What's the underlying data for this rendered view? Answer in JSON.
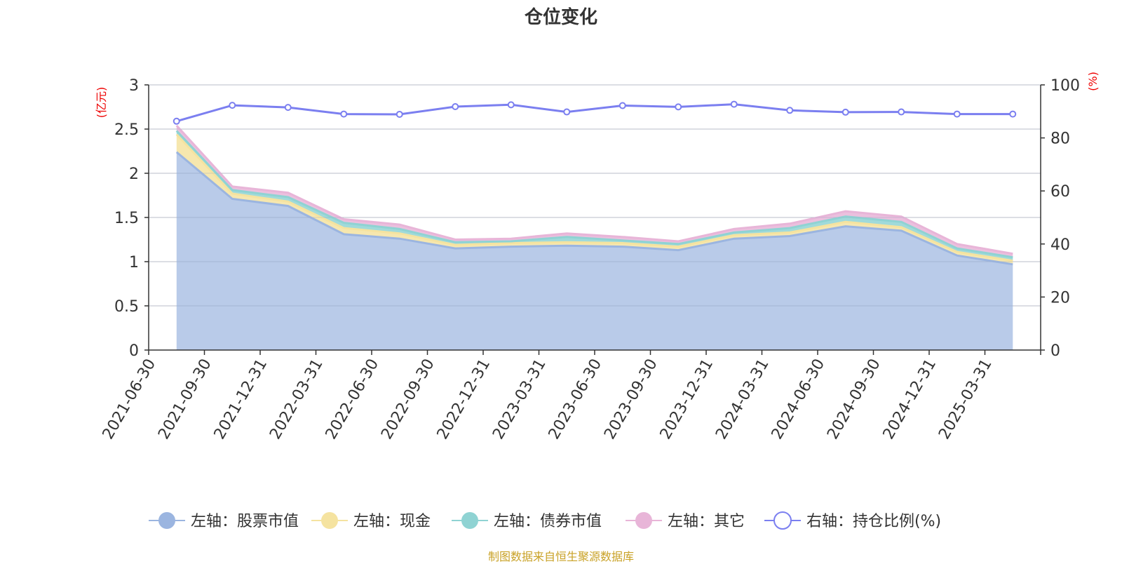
{
  "chart_data": {
    "type": "area",
    "title": "仓位变化",
    "left_axis_unit": "(亿元)",
    "right_axis_unit": "(%)",
    "left_ylim": [
      0,
      3
    ],
    "left_ticks": [
      "0",
      "0.5",
      "1",
      "1.5",
      "2",
      "2.5",
      "3"
    ],
    "right_ylim": [
      0,
      100
    ],
    "right_ticks": [
      "0",
      "20",
      "40",
      "60",
      "80",
      "100"
    ],
    "categories": [
      "2021-06-30",
      "2021-09-30",
      "2021-12-31",
      "2022-03-31",
      "2022-06-30",
      "2022-09-30",
      "2022-12-31",
      "2023-03-31",
      "2023-06-30",
      "2023-09-30",
      "2023-12-31",
      "2024-03-31",
      "2024-06-30",
      "2024-09-30",
      "2024-12-31",
      "2025-03-31"
    ],
    "series": [
      {
        "name": "左轴：股票市值",
        "axis": "left",
        "stacked": true,
        "color": "#9bb5e0",
        "values": [
          2.24,
          1.71,
          1.63,
          1.31,
          1.26,
          1.15,
          1.17,
          1.18,
          1.17,
          1.13,
          1.26,
          1.29,
          1.4,
          1.35,
          1.07,
          0.97
        ]
      },
      {
        "name": "左轴：现金",
        "axis": "left",
        "stacked": true,
        "color": "#f5e3a0",
        "values": [
          0.2,
          0.06,
          0.05,
          0.07,
          0.06,
          0.04,
          0.04,
          0.04,
          0.04,
          0.04,
          0.04,
          0.04,
          0.05,
          0.04,
          0.04,
          0.04
        ]
      },
      {
        "name": "左轴：债券市值",
        "axis": "left",
        "stacked": true,
        "color": "#8fd3d3",
        "values": [
          0.04,
          0.04,
          0.05,
          0.06,
          0.05,
          0.03,
          0.02,
          0.06,
          0.03,
          0.03,
          0.03,
          0.05,
          0.06,
          0.06,
          0.04,
          0.04
        ]
      },
      {
        "name": "左轴：其它",
        "axis": "left",
        "stacked": true,
        "color": "#e8b5d8",
        "values": [
          0.06,
          0.04,
          0.05,
          0.04,
          0.05,
          0.03,
          0.03,
          0.04,
          0.04,
          0.03,
          0.04,
          0.05,
          0.06,
          0.06,
          0.05,
          0.04
        ]
      },
      {
        "name": "右轴：持仓比例(%)",
        "axis": "right",
        "type": "line",
        "color": "#7b7ff0",
        "values": [
          86.3,
          92.3,
          91.5,
          89.0,
          88.9,
          91.8,
          92.5,
          89.8,
          92.2,
          91.7,
          92.7,
          90.4,
          89.7,
          89.8,
          89.0,
          89.0
        ]
      }
    ],
    "legend_position": "bottom-center",
    "grid": true
  },
  "source_note": "制图数据来自恒生聚源数据库"
}
